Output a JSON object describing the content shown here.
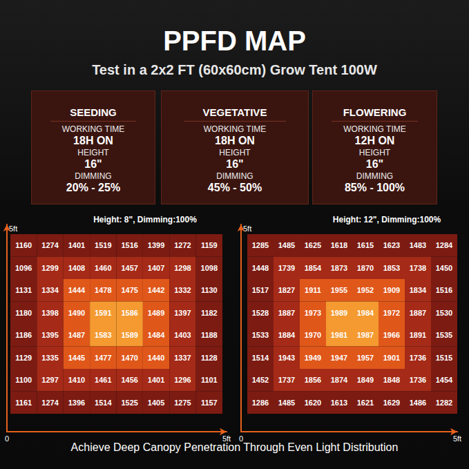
{
  "header": {
    "title": "PPFD MAP",
    "subtitle": "Test in a 2x2 FT (60x60cm) Grow Tent 100W"
  },
  "modes": [
    {
      "name": "SEEDING",
      "rows": [
        {
          "label": "WORKING TIME",
          "value": "18H ON"
        },
        {
          "label": "HEIGHT",
          "value": "16\""
        },
        {
          "label": "DIMMING",
          "value": "20% - 25%"
        }
      ]
    },
    {
      "name": "VEGETATIVE",
      "rows": [
        {
          "label": "WORKING TIME",
          "value": "18H ON"
        },
        {
          "label": "HEIGHT",
          "value": "16\""
        },
        {
          "label": "DIMMING",
          "value": "45% - 50%"
        }
      ]
    },
    {
      "name": "FLOWERING",
      "rows": [
        {
          "label": "WORKING TIME",
          "value": "12H ON"
        },
        {
          "label": "HEIGHT",
          "value": "16\""
        },
        {
          "label": "DIMMING",
          "value": "85% - 100%"
        }
      ]
    }
  ],
  "chart_data": [
    {
      "type": "heatmap",
      "title": "Height: 8\", Dimming:100%",
      "xlim": [
        0,
        5
      ],
      "ylim": [
        0,
        5
      ],
      "xticks": [
        0,
        {
          "value": 5,
          "label": "5ft"
        }
      ],
      "yticks": [
        {
          "value": 5,
          "label": "5ft"
        }
      ],
      "data_labels": true,
      "cells": [
        [
          1160,
          1274,
          1401,
          1519,
          1516,
          1399,
          1272,
          1159
        ],
        [
          1096,
          1299,
          1408,
          1460,
          1457,
          1407,
          1298,
          1098
        ],
        [
          1131,
          1334,
          1444,
          1478,
          1475,
          1442,
          1332,
          1130
        ],
        [
          1180,
          1398,
          1490,
          1591,
          1586,
          1489,
          1397,
          1182
        ],
        [
          1186,
          1395,
          1487,
          1583,
          1589,
          1484,
          1403,
          1188
        ],
        [
          1129,
          1335,
          1445,
          1477,
          1470,
          1440,
          1337,
          1128
        ],
        [
          1100,
          1297,
          1410,
          1461,
          1456,
          1401,
          1296,
          1101
        ],
        [
          1161,
          1274,
          1396,
          1514,
          1525,
          1405,
          1275,
          1157
        ]
      ]
    },
    {
      "type": "heatmap",
      "title": "Height: 12\", Dimming:100%",
      "xlim": [
        0,
        5
      ],
      "ylim": [
        0,
        5
      ],
      "xticks": [
        0,
        {
          "value": 5,
          "label": "5ft"
        }
      ],
      "yticks": [
        {
          "value": 5,
          "label": "5ft"
        }
      ],
      "data_labels": true,
      "cells": [
        [
          1285,
          1485,
          1625,
          1618,
          1615,
          1623,
          1483,
          1284
        ],
        [
          1448,
          1739,
          1854,
          1873,
          1870,
          1853,
          1738,
          1450
        ],
        [
          1517,
          1827,
          1911,
          1955,
          1952,
          1909,
          1834,
          1516
        ],
        [
          1528,
          1887,
          1973,
          1989,
          1984,
          1972,
          1887,
          1530
        ],
        [
          1533,
          1884,
          1970,
          1981,
          1987,
          1966,
          1891,
          1535
        ],
        [
          1514,
          1943,
          1949,
          1947,
          1957,
          1901,
          1736,
          1515
        ],
        [
          1452,
          1737,
          1856,
          1874,
          1849,
          1848,
          1736,
          1454
        ],
        [
          1286,
          1485,
          1620,
          1613,
          1621,
          1629,
          1486,
          1282
        ]
      ]
    }
  ],
  "footer": "Achieve Deep Canopy Penetration Through Even Light Distribution"
}
